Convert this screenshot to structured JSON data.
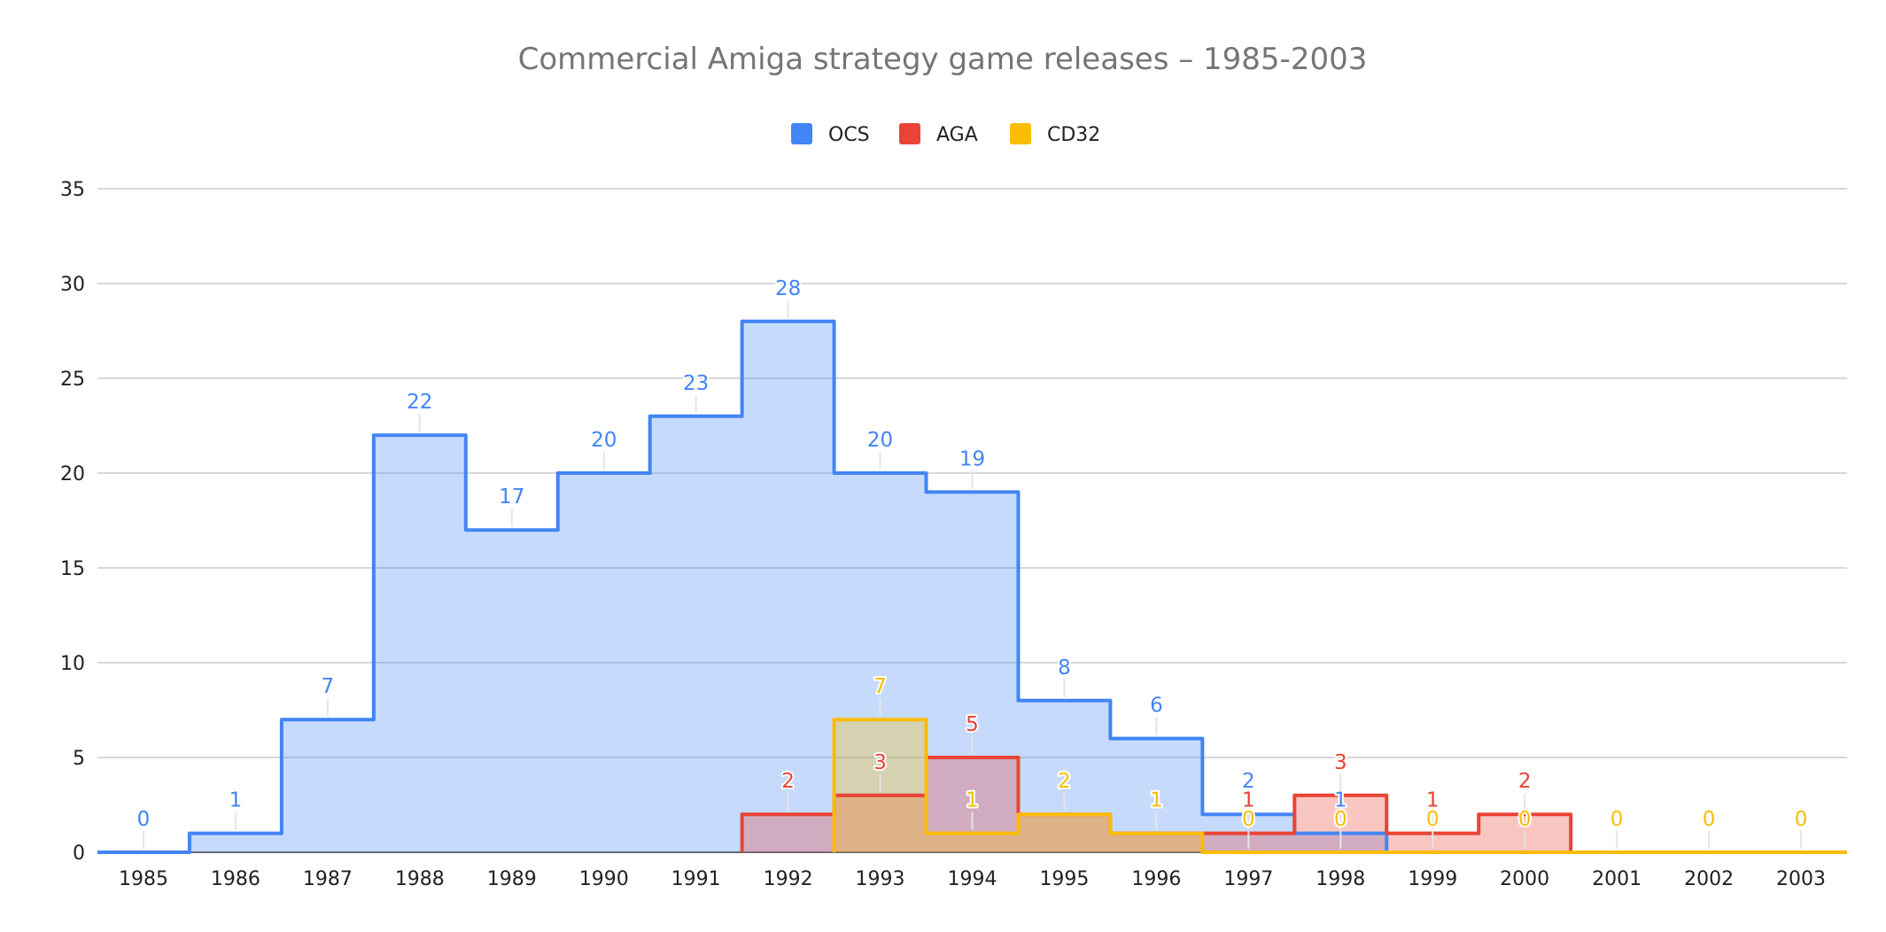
{
  "chart_data": {
    "type": "area",
    "step": true,
    "title": "Commercial Amiga strategy game releases – 1985-2003",
    "xlabel": "",
    "ylabel": "",
    "categories": [
      "1985",
      "1986",
      "1987",
      "1988",
      "1989",
      "1990",
      "1991",
      "1992",
      "1993",
      "1994",
      "1995",
      "1996",
      "1997",
      "1998",
      "1999",
      "2000",
      "2001",
      "2002",
      "2003"
    ],
    "ylim": [
      0,
      35
    ],
    "yticks": [
      0,
      5,
      10,
      15,
      20,
      25,
      30,
      35
    ],
    "grid": true,
    "legend_position": "top",
    "series": [
      {
        "name": "OCS",
        "color": "#4285f4",
        "values": [
          0,
          1,
          7,
          22,
          17,
          20,
          23,
          28,
          20,
          19,
          8,
          6,
          2,
          1,
          null,
          null,
          null,
          null,
          null
        ]
      },
      {
        "name": "AGA",
        "color": "#ea4335",
        "values": [
          null,
          null,
          null,
          null,
          null,
          null,
          null,
          2,
          3,
          5,
          2,
          1,
          1,
          3,
          1,
          2,
          null,
          null,
          null
        ]
      },
      {
        "name": "CD32",
        "color": "#fbbc04",
        "values": [
          null,
          null,
          null,
          null,
          null,
          null,
          null,
          null,
          7,
          1,
          2,
          1,
          0,
          0,
          0,
          0,
          0,
          0,
          0
        ]
      }
    ]
  }
}
